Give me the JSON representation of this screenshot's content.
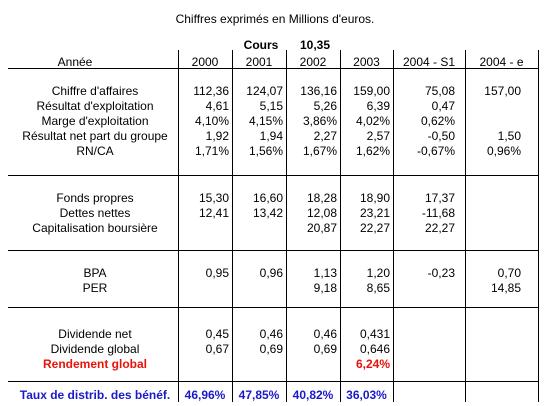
{
  "caption": "Chiffres exprimés en Millions d'euros.",
  "cours": {
    "label": "Cours",
    "value": "10,35"
  },
  "header": {
    "label": "Année",
    "years": [
      "2000",
      "2001",
      "2002",
      "2003",
      "2004 - S1",
      "2004 - e"
    ]
  },
  "section1": [
    {
      "label": "Chiffre d'affaires",
      "values": [
        "112,36",
        "124,07",
        "136,16",
        "159,00",
        "75,08",
        "157,00"
      ]
    },
    {
      "label": "Résultat d'exploitation",
      "values": [
        "4,61",
        "5,15",
        "5,26",
        "6,39",
        "0,47",
        ""
      ]
    },
    {
      "label": "Marge d'exploitation",
      "values": [
        "4,10%",
        "4,15%",
        "3,86%",
        "4,02%",
        "0,62%",
        ""
      ]
    },
    {
      "label": "Résultat net part du groupe",
      "values": [
        "1,92",
        "1,94",
        "2,27",
        "2,57",
        "-0,50",
        "1,50"
      ]
    },
    {
      "label": "RN/CA",
      "values": [
        "1,71%",
        "1,56%",
        "1,67%",
        "1,62%",
        "-0,67%",
        "0,96%"
      ]
    }
  ],
  "section2": [
    {
      "label": "Fonds propres",
      "values": [
        "15,30",
        "16,60",
        "18,28",
        "18,90",
        "17,37",
        ""
      ]
    },
    {
      "label": "Dettes nettes",
      "values": [
        "12,41",
        "13,42",
        "12,08",
        "23,21",
        "-11,68",
        ""
      ]
    },
    {
      "label": "Capitalisation boursière",
      "values": [
        "",
        "",
        "20,87",
        "22,27",
        "22,27",
        ""
      ]
    }
  ],
  "section3": [
    {
      "label": "BPA",
      "values": [
        "0,95",
        "0,96",
        "1,13",
        "1,20",
        "-0,23",
        "0,70"
      ]
    },
    {
      "label": "PER",
      "values": [
        "",
        "",
        "9,18",
        "8,65",
        "",
        "14,85"
      ]
    }
  ],
  "section4": [
    {
      "label": "Dividende net",
      "values": [
        "0,45",
        "0,46",
        "0,46",
        "0,431"
      ]
    },
    {
      "label": "Dividende global",
      "values": [
        "0,67",
        "0,69",
        "0,69",
        "0,646"
      ]
    },
    {
      "label": "Rendement global",
      "values": [
        "",
        "",
        "",
        "6,24%"
      ]
    }
  ],
  "payout": {
    "label": "Taux de distrib. des bénéf.",
    "values": [
      "46,96%",
      "47,85%",
      "40,82%",
      "36,03%"
    ]
  },
  "colors": {
    "rendement": "#e8130b",
    "payout": "#1a1ac8"
  }
}
